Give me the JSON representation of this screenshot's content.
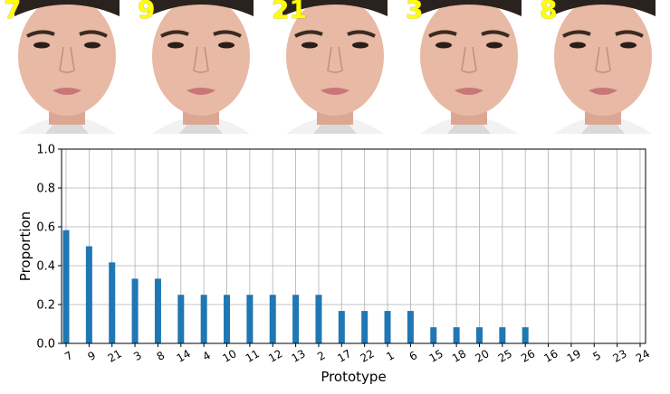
{
  "faces": [
    {
      "label": "7"
    },
    {
      "label": "9"
    },
    {
      "label": "21"
    },
    {
      "label": "3"
    },
    {
      "label": "8"
    }
  ],
  "colors": {
    "bar": "#1f77b4",
    "grid": "#b0b0b0",
    "face_label": "#ffff00",
    "skin": "#e8b9a4",
    "hair": "#2a221e",
    "background": "#ffffff"
  },
  "chart_data": {
    "type": "bar",
    "xlabel": "Prototype",
    "ylabel": "Proportion",
    "ylim": [
      0,
      1.0
    ],
    "yticks": [
      "0.0",
      "0.2",
      "0.4",
      "0.6",
      "0.8",
      "1.0"
    ],
    "grid": true,
    "categories": [
      "7",
      "9",
      "21",
      "3",
      "8",
      "14",
      "4",
      "10",
      "11",
      "12",
      "13",
      "2",
      "17",
      "22",
      "1",
      "6",
      "15",
      "18",
      "20",
      "25",
      "26",
      "16",
      "19",
      "5",
      "23",
      "24"
    ],
    "values": [
      0.583,
      0.5,
      0.417,
      0.333,
      0.333,
      0.25,
      0.25,
      0.25,
      0.25,
      0.25,
      0.25,
      0.25,
      0.167,
      0.167,
      0.167,
      0.167,
      0.083,
      0.083,
      0.083,
      0.083,
      0.083,
      0,
      0,
      0,
      0,
      0
    ]
  }
}
